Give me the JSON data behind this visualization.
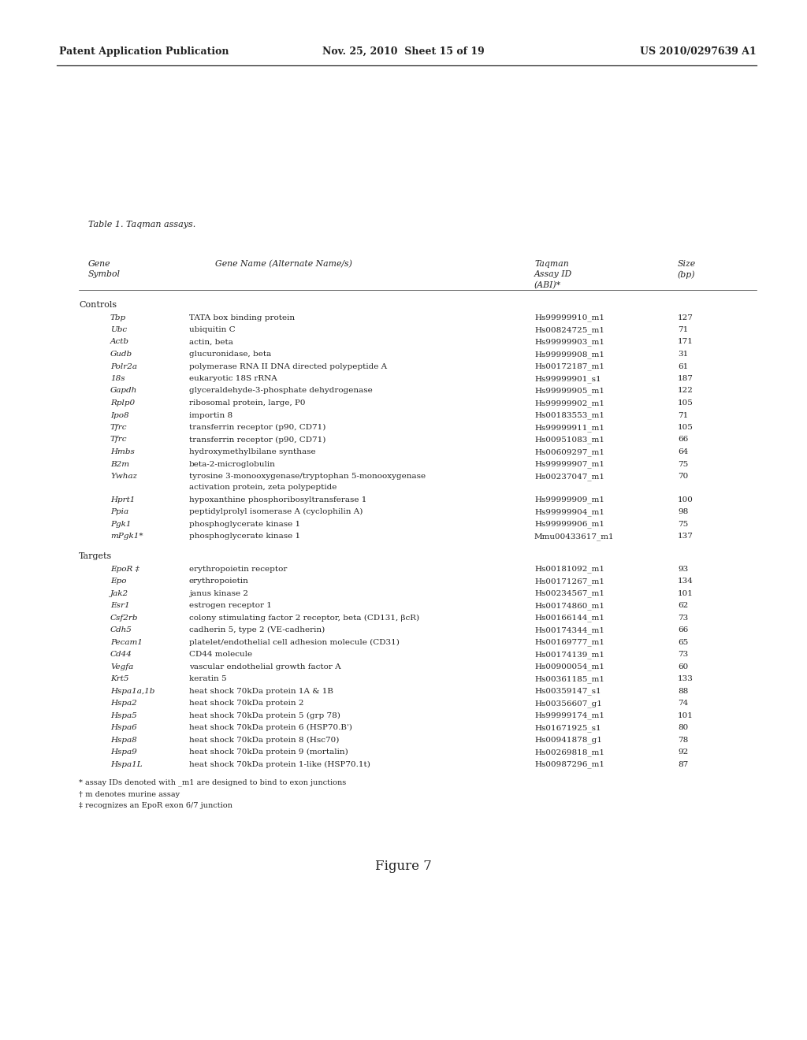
{
  "header_left": "Patent Application Publication",
  "header_center": "Nov. 25, 2010  Sheet 15 of 19",
  "header_right": "US 2010/0297639 A1",
  "table_title": "Table 1. Taqman assays.",
  "section_controls": "Controls",
  "section_targets": "Targets",
  "controls": [
    [
      "Tbp",
      "TATA box binding protein",
      "Hs99999910_m1",
      "127"
    ],
    [
      "Ubc",
      "ubiquitin C",
      "Hs00824725_m1",
      "71"
    ],
    [
      "Actb",
      "actin, beta",
      "Hs99999903_m1",
      "171"
    ],
    [
      "Gudb",
      "glucuronidase, beta",
      "Hs99999908_m1",
      "31"
    ],
    [
      "Polr2a",
      "polymerase RNA II DNA directed polypeptide A",
      "Hs00172187_m1",
      "61"
    ],
    [
      "18s",
      "eukaryotic 18S rRNA",
      "Hs99999901_s1",
      "187"
    ],
    [
      "Gapdh",
      "glyceraldehyde-3-phosphate dehydrogenase",
      "Hs99999905_m1",
      "122"
    ],
    [
      "Rplp0",
      "ribosomal protein, large, P0",
      "Hs99999902_m1",
      "105"
    ],
    [
      "Ipo8",
      "importin 8",
      "Hs00183553_m1",
      "71"
    ],
    [
      "Tfrc",
      "transferrin receptor (p90, CD71)",
      "Hs99999911_m1",
      "105"
    ],
    [
      "Tfrc",
      "transferrin receptor (p90, CD71)",
      "Hs00951083_m1",
      "66"
    ],
    [
      "Hmbs",
      "hydroxymethylbilane synthase",
      "Hs00609297_m1",
      "64"
    ],
    [
      "B2m",
      "beta-2-microglobulin",
      "Hs99999907_m1",
      "75"
    ],
    [
      "Ywhaz",
      "tyrosine 3-monooxygenase/tryptophan 5-monooxygenase\nactivation protein, zeta polypeptide",
      "Hs00237047_m1",
      "70"
    ],
    [
      "Hprt1",
      "hypoxanthine phosphoribosyltransferase 1",
      "Hs99999909_m1",
      "100"
    ],
    [
      "Ppia",
      "peptidylprolyl isomerase A (cyclophilin A)",
      "Hs99999904_m1",
      "98"
    ],
    [
      "Pgk1",
      "phosphoglycerate kinase 1",
      "Hs99999906_m1",
      "75"
    ],
    [
      "mPgk1*",
      "phosphoglycerate kinase 1",
      "Mmu00433617_m1",
      "137"
    ]
  ],
  "targets": [
    [
      "EpoR ‡",
      "erythropoietin receptor",
      "Hs00181092_m1",
      "93"
    ],
    [
      "Epo",
      "erythropoietin",
      "Hs00171267_m1",
      "134"
    ],
    [
      "Jak2",
      "janus kinase 2",
      "Hs00234567_m1",
      "101"
    ],
    [
      "Esr1",
      "estrogen receptor 1",
      "Hs00174860_m1",
      "62"
    ],
    [
      "Csf2rb",
      "colony stimulating factor 2 receptor, beta (CD131, βcR)",
      "Hs00166144_m1",
      "73"
    ],
    [
      "Cdh5",
      "cadherin 5, type 2 (VE-cadherin)",
      "Hs00174344_m1",
      "66"
    ],
    [
      "Pecam1",
      "platelet/endothelial cell adhesion molecule (CD31)",
      "Hs00169777_m1",
      "65"
    ],
    [
      "Cd44",
      "CD44 molecule",
      "Hs00174139_m1",
      "73"
    ],
    [
      "Vegfa",
      "vascular endothelial growth factor A",
      "Hs00900054_m1",
      "60"
    ],
    [
      "Krt5",
      "keratin 5",
      "Hs00361185_m1",
      "133"
    ],
    [
      "Hspa1a,1b",
      "heat shock 70kDa protein 1A & 1B",
      "Hs00359147_s1",
      "88"
    ],
    [
      "Hspa2",
      "heat shock 70kDa protein 2",
      "Hs00356607_g1",
      "74"
    ],
    [
      "Hspa5",
      "heat shock 70kDa protein 5 (grp 78)",
      "Hs99999174_m1",
      "101"
    ],
    [
      "Hspa6",
      "heat shock 70kDa protein 6 (HSP70.B')",
      "Hs01671925_s1",
      "80"
    ],
    [
      "Hspa8",
      "heat shock 70kDa protein 8 (Hsc70)",
      "Hs00941878_g1",
      "78"
    ],
    [
      "Hspa9",
      "heat shock 70kDa protein 9 (mortalin)",
      "Hs00269818_m1",
      "92"
    ],
    [
      "Hspa1L",
      "heat shock 70kDa protein 1-like (HSP70.1t)",
      "Hs00987296_m1",
      "87"
    ]
  ],
  "footnotes": [
    "* assay IDs denoted with _m1 are designed to bind to exon junctions",
    "† m denotes murine assay",
    "‡ recognizes an EpoR exon 6/7 junction"
  ],
  "figure_caption": "Figure 7",
  "background_color": "#ffffff",
  "text_color": "#222222"
}
